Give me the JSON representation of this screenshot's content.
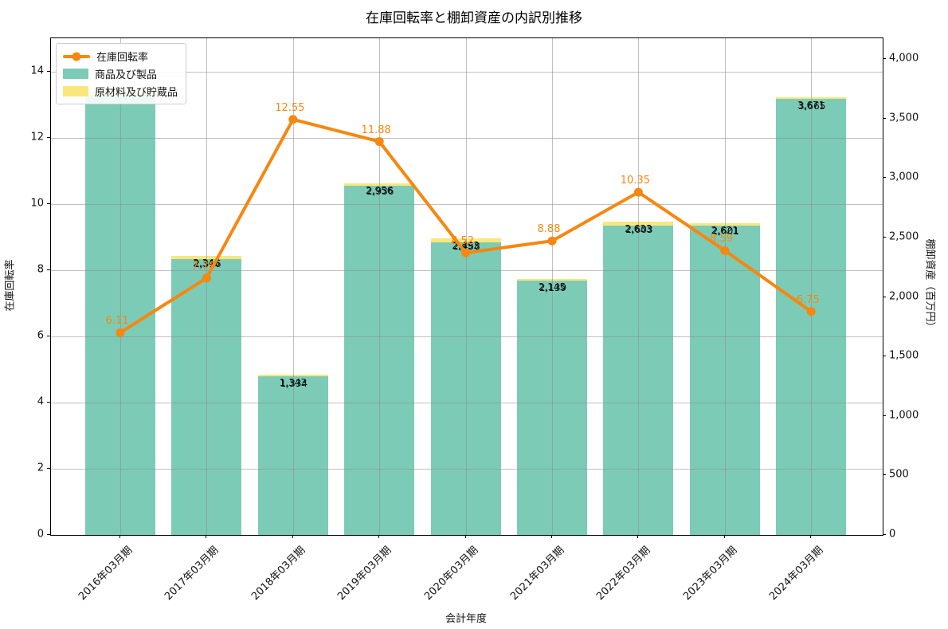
{
  "title": "在庫回転率と棚卸資産の内訳別推移",
  "legend": {
    "items": [
      {
        "label": "在庫回転率",
        "type": "line",
        "color": "#F6870F"
      },
      {
        "label": "商品及び製品",
        "type": "patch",
        "color": "#7CCBB7"
      },
      {
        "label": "原材料及び貯蔵品",
        "type": "patch",
        "color": "#F9E77D"
      }
    ]
  },
  "axes": {
    "left": {
      "title": "在庫回転率",
      "ticks": [
        "0",
        "2",
        "4",
        "6",
        "8",
        "10",
        "12",
        "14"
      ],
      "tick_values": [
        0,
        2,
        4,
        6,
        8,
        10,
        12,
        14
      ]
    },
    "right": {
      "title": "棚卸資産（百万円）",
      "ticks": [
        "0",
        "500",
        "1,000",
        "1,500",
        "2,000",
        "2,500",
        "3,000",
        "3,500",
        "4,000"
      ],
      "tick_values": [
        0,
        500,
        1000,
        1500,
        2000,
        2500,
        3000,
        3500,
        4000
      ]
    },
    "x": {
      "title": "会計年度"
    }
  },
  "chart_data": {
    "type": "bar+line combo (stacked bars, secondary-axis line)",
    "categories": [
      "2016年03月期",
      "2017年03月期",
      "2018年03月期",
      "2019年03月期",
      "2020年03月期",
      "2021年03月期",
      "2022年03月期",
      "2023年03月期",
      "2024年03月期"
    ],
    "bar_series": [
      {
        "name": "商品及び製品",
        "color": "#7CCBB7",
        "axis": "right",
        "values": [
          3700,
          2316,
          1334,
          2936,
          2458,
          2139,
          2603,
          2601,
          3665
        ],
        "labels": [
          "",
          "2,316",
          "1,334",
          "2,936",
          "2,458",
          "2,139",
          "2,603",
          "2,601",
          "3,665"
        ]
      },
      {
        "name": "原材料及び貯蔵品",
        "color": "#F9E77D",
        "axis": "right",
        "values": [
          24,
          29,
          9,
          20,
          35,
          6,
          30,
          20,
          6
        ],
        "labels": [
          "",
          "",
          "",
          "",
          "",
          "",
          "",
          "",
          ""
        ]
      }
    ],
    "bar_totals": [
      3724,
      2345,
      1343,
      2956,
      2493,
      2145,
      2633,
      2621,
      3671
    ],
    "bar_total_labels": [
      "",
      "2,345",
      "1,343",
      "2,956",
      "2,493",
      "2,145",
      "2,633",
      "2,621",
      "3,671"
    ],
    "line_series": {
      "name": "在庫回転率",
      "color": "#F6870F",
      "axis": "left",
      "values": [
        6.11,
        7.76,
        12.55,
        11.88,
        8.52,
        8.88,
        10.35,
        8.59,
        6.75
      ],
      "labels": [
        "6.11",
        "7.76",
        "12.55",
        "11.88",
        "8.52",
        "8.88",
        "10.35",
        "8.59",
        "6.75"
      ]
    },
    "left_ylim": [
      0,
      15
    ],
    "right_ylim": [
      0,
      4174
    ],
    "grid": true,
    "legend_position": "upper left",
    "note_2016_labels": "bar labels for 2016年03月期 are hidden behind the legend box"
  }
}
